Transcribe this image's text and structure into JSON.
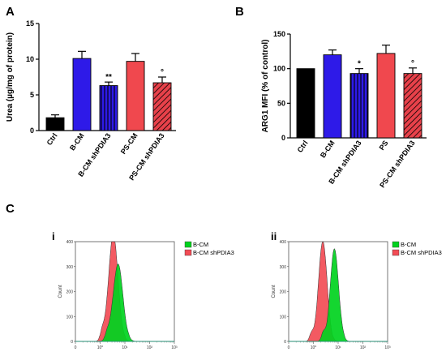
{
  "panels": {
    "A": "A",
    "B": "B",
    "C": "C",
    "ci": "i",
    "cii": "ii"
  },
  "colors": {
    "ctrl": "#000000",
    "bcm": "#2e1ae8",
    "bcm_sh": "#2e1ae8",
    "pscm": "#f0484e",
    "pscm_sh": "#e8414a",
    "hist_green": "#00d21e",
    "hist_red": "#f24c55"
  },
  "chart_data": [
    {
      "type": "bar",
      "panel": "A",
      "categories": [
        "Ctrl",
        "B-CM",
        "B-CM shPDIA3",
        "PS-CM",
        "PS-CM shPDIA3"
      ],
      "values": [
        1.8,
        10.1,
        6.3,
        9.7,
        6.7
      ],
      "errors": [
        0.4,
        1.0,
        0.5,
        1.1,
        0.8
      ],
      "hatched": [
        false,
        false,
        true,
        false,
        true
      ],
      "significance": [
        "",
        "",
        "**",
        "",
        "°"
      ],
      "ylabel": "Urea (µg/mg of protein)",
      "ylim": [
        0,
        15
      ],
      "yticks": [
        0,
        5,
        10,
        15
      ]
    },
    {
      "type": "bar",
      "panel": "B",
      "categories": [
        "Ctrl",
        "B-CM",
        "B-CM shPDIA3",
        "PS",
        "PS-CM shPDIA3"
      ],
      "values": [
        100,
        120,
        93,
        122,
        93
      ],
      "errors": [
        0,
        7,
        7,
        12,
        8
      ],
      "hatched": [
        false,
        false,
        true,
        false,
        true
      ],
      "significance": [
        "",
        "",
        "*",
        "",
        "°"
      ],
      "ylabel": "ARG1 MFI (% of control)",
      "ylim": [
        0,
        150
      ],
      "yticks": [
        0,
        50,
        100,
        150
      ]
    },
    {
      "type": "area",
      "panel": "C-i",
      "ylabel": "Count",
      "ylim": [
        0,
        400
      ],
      "yticks": [
        0,
        100,
        200,
        300,
        400
      ],
      "xscale": "log",
      "xticks": [
        "0",
        "10⁰",
        "10¹",
        "10²",
        "10³"
      ],
      "series": [
        {
          "name": "B-CM",
          "peak_log10": 0.72,
          "peak_count": 310,
          "width": 0.2
        },
        {
          "name": "B-CM shPDIA3",
          "peak_log10": 0.53,
          "peak_count": 430,
          "width": 0.19
        }
      ]
    },
    {
      "type": "area",
      "panel": "C-ii",
      "ylabel": "Count",
      "ylim": [
        0,
        400
      ],
      "yticks": [
        0,
        100,
        200,
        300,
        400
      ],
      "xscale": "log",
      "xticks": [
        "0",
        "10⁰",
        "10¹",
        "10²",
        "10³"
      ],
      "series": [
        {
          "name": "B-CM",
          "peak_log10": 0.85,
          "peak_count": 370,
          "width": 0.17
        },
        {
          "name": "B-CM shPDIA3",
          "peak_log10": 0.38,
          "peak_count": 405,
          "width": 0.17
        }
      ]
    }
  ]
}
